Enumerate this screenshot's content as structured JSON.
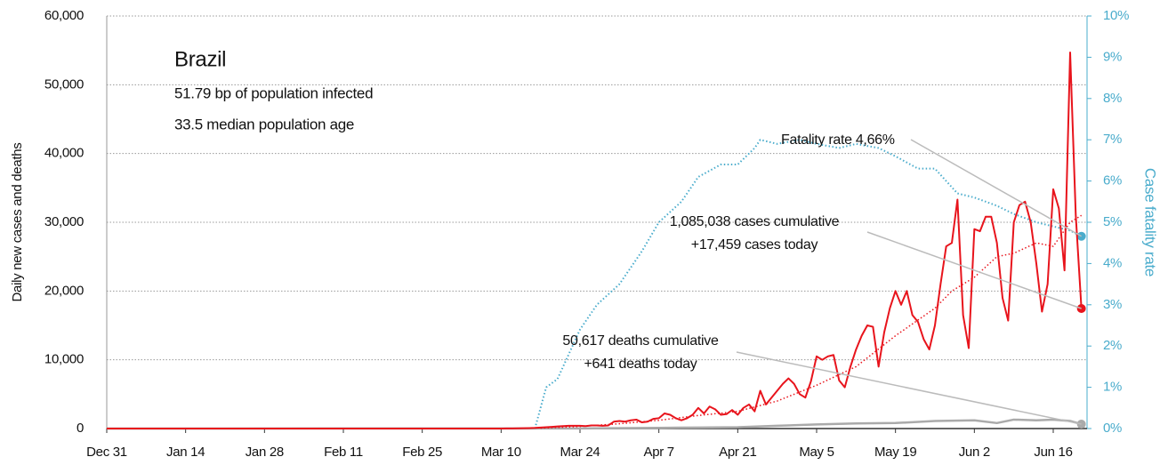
{
  "chart_data": {
    "type": "line",
    "title": "Brazil",
    "subtitle": [
      "51.79 bp of population infected",
      "33.5 median population age"
    ],
    "ylabel": "Daily new cases and deaths",
    "y2label": "Case fatality rate",
    "xlim": [
      0,
      174
    ],
    "xticks": [
      {
        "value": 0,
        "label": "Dec 31"
      },
      {
        "value": 14,
        "label": "Jan 14"
      },
      {
        "value": 28,
        "label": "Jan 28"
      },
      {
        "value": 42,
        "label": "Feb 11"
      },
      {
        "value": 56,
        "label": "Feb 25"
      },
      {
        "value": 70,
        "label": "Mar 10"
      },
      {
        "value": 84,
        "label": "Mar 24"
      },
      {
        "value": 98,
        "label": "Apr 7"
      },
      {
        "value": 112,
        "label": "Apr 21"
      },
      {
        "value": 126,
        "label": "May 5"
      },
      {
        "value": 140,
        "label": "May 19"
      },
      {
        "value": 154,
        "label": "Jun 2"
      },
      {
        "value": 168,
        "label": "Jun 16"
      }
    ],
    "ylim": [
      0,
      60000
    ],
    "yticks": [
      0,
      {
        "value": 10000,
        "label": "10,000"
      },
      {
        "value": 20000,
        "label": "20,000"
      },
      {
        "value": 30000,
        "label": "30,000"
      },
      {
        "value": 40000,
        "label": "40,000"
      },
      {
        "value": 50000,
        "label": "50,000"
      },
      {
        "value": 60000,
        "label": "60,000"
      }
    ],
    "y2lim": [
      0,
      10
    ],
    "y2ticks": [
      {
        "value": 0,
        "label": "0%"
      },
      {
        "value": 1,
        "label": "1%"
      },
      {
        "value": 2,
        "label": "2%"
      },
      {
        "value": 3,
        "label": "3%"
      },
      {
        "value": 4,
        "label": "4%"
      },
      {
        "value": 5,
        "label": "5%"
      },
      {
        "value": 6,
        "label": "6%"
      },
      {
        "value": 7,
        "label": "7%"
      },
      {
        "value": 8,
        "label": "8%"
      },
      {
        "value": 9,
        "label": "9%"
      },
      {
        "value": 10,
        "label": "10%"
      }
    ],
    "grid": true,
    "series": [
      {
        "color": "#aaaaaa",
        "style": "solid",
        "width": 2.5,
        "end_marker": true,
        "x": [
          0,
          84,
          98,
          105,
          112,
          119,
          126,
          133,
          140,
          147,
          154,
          158,
          161,
          165,
          168,
          171,
          173
        ],
        "values": [
          0,
          20,
          100,
          150,
          200,
          400,
          600,
          750,
          800,
          1100,
          1200,
          800,
          1300,
          1200,
          1300,
          1100,
          641
        ]
      },
      {
        "color": "#4aaccc",
        "style": "dotted",
        "width": 2,
        "axis": "y2",
        "end_marker": true,
        "x": [
          76,
          78,
          80,
          84,
          87,
          91,
          95,
          98,
          102,
          105,
          109,
          112,
          115,
          116,
          119,
          123,
          126,
          130,
          133,
          137,
          140,
          144,
          147,
          151,
          154,
          158,
          161,
          165,
          168,
          171,
          173
        ],
        "values": [
          0,
          1.0,
          1.2,
          2.4,
          3.0,
          3.5,
          4.3,
          5.0,
          5.5,
          6.1,
          6.4,
          6.4,
          6.8,
          7.0,
          6.9,
          7.0,
          6.9,
          6.8,
          6.9,
          6.8,
          6.6,
          6.3,
          6.3,
          5.7,
          5.6,
          5.4,
          5.2,
          5.0,
          4.9,
          4.8,
          4.66
        ]
      },
      {
        "color": "#e8141c",
        "style": "dotted",
        "width": 1.5,
        "x": [
          77,
          84,
          91,
          98,
          105,
          112,
          119,
          126,
          133,
          140,
          147,
          150,
          154,
          158,
          161,
          165,
          168,
          171,
          173
        ],
        "values": [
          60,
          300,
          700,
          1200,
          1900,
          2500,
          4000,
          6300,
          9000,
          13500,
          17500,
          20000,
          22000,
          25000,
          25500,
          27000,
          26500,
          30000,
          31000
        ]
      },
      {
        "color": "#e8141c",
        "style": "solid",
        "width": 2,
        "end_marker": true,
        "x": [
          0,
          69,
          70,
          71,
          72,
          73,
          74,
          75,
          76,
          77,
          78,
          79,
          80,
          81,
          82,
          83,
          84,
          85,
          86,
          87,
          88,
          89,
          90,
          91,
          92,
          93,
          94,
          95,
          96,
          97,
          98,
          99,
          100,
          101,
          102,
          103,
          104,
          105,
          106,
          107,
          108,
          109,
          110,
          111,
          112,
          113,
          114,
          115,
          116,
          117,
          118,
          119,
          120,
          121,
          122,
          123,
          124,
          125,
          126,
          127,
          128,
          129,
          130,
          131,
          132,
          133,
          134,
          135,
          136,
          137,
          138,
          139,
          140,
          141,
          142,
          143,
          144,
          145,
          146,
          147,
          148,
          149,
          150,
          151,
          152,
          153,
          154,
          155,
          156,
          157,
          158,
          159,
          160,
          161,
          162,
          163,
          164,
          165,
          166,
          167,
          168,
          169,
          170,
          171,
          172,
          173
        ],
        "values": [
          0,
          0,
          0,
          10,
          20,
          30,
          50,
          70,
          100,
          150,
          200,
          250,
          300,
          350,
          400,
          400,
          400,
          350,
          450,
          450,
          400,
          450,
          1000,
          1100,
          1000,
          1200,
          1300,
          900,
          1000,
          1400,
          1500,
          2200,
          2000,
          1500,
          1200,
          1500,
          2000,
          3000,
          2200,
          3200,
          2800,
          2000,
          2100,
          2700,
          2000,
          3000,
          3500,
          2500,
          5500,
          3500,
          4500,
          5500,
          6500,
          7300,
          6500,
          5000,
          4500,
          6900,
          10500,
          10000,
          10500,
          10700,
          7000,
          6000,
          9000,
          11500,
          13500,
          15000,
          14800,
          9000,
          14000,
          17500,
          20000,
          18000,
          20000,
          16500,
          15500,
          13000,
          11500,
          15000,
          21000,
          26500,
          27000,
          33300,
          16500,
          11700,
          29000,
          28700,
          30800,
          30800,
          27000,
          19000,
          15700,
          30000,
          32500,
          33000,
          30000,
          24000,
          17000,
          21000,
          34800,
          32000,
          23000,
          54700,
          31000,
          17459
        ]
      }
    ],
    "annotations": [
      {
        "text": [
          "Fatality rate 4,66%"
        ],
        "series": 1
      },
      {
        "text": [
          "1,085,038 cases cumulative",
          "+17,459 cases today"
        ],
        "series": 3
      },
      {
        "text": [
          "50,617 deaths cumulative",
          "+641 deaths today"
        ],
        "series": 0
      }
    ]
  }
}
